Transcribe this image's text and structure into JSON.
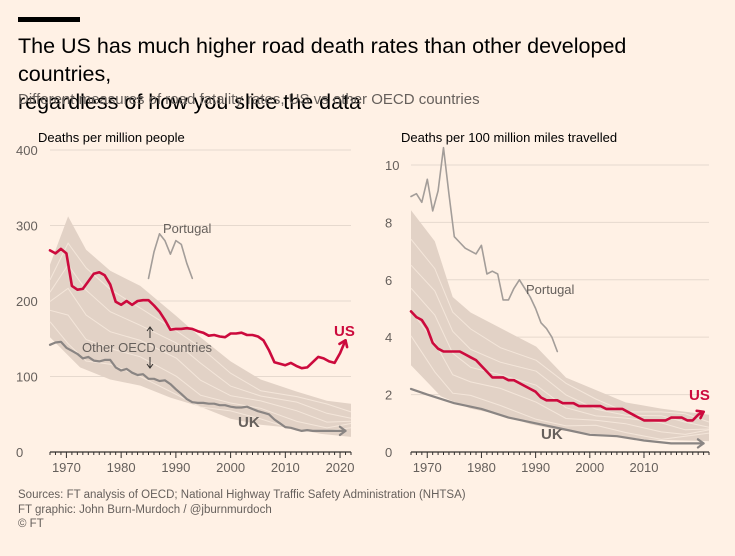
{
  "header": {
    "title_line1": "The US has much higher road death rates than other developed countries,",
    "title_line2": "regardless of how you slice the data",
    "subtitle": "Different measures of road fatality rates, US vs other OECD countries"
  },
  "colors": {
    "background": "#fff1e5",
    "us": "#cc0a3d",
    "uk": "#8a8583",
    "other_oecd_band": "#e2d2c6",
    "other_oecd_lines": "#f4e6da",
    "portugal": "#a39d99",
    "axis": "#33302e"
  },
  "footer": {
    "sources": "Sources: FT analysis of OECD; National Highway Traffic Safety Administration (NHTSA)",
    "graphic": "FT graphic: John Burn-Murdoch / @jburnmurdoch",
    "copyright": "© FT"
  },
  "chart_data": [
    {
      "type": "line",
      "title": "Deaths per million people",
      "xlim": [
        1967,
        2022
      ],
      "ylim": [
        0,
        400
      ],
      "x_ticks": [
        1970,
        1980,
        1990,
        2000,
        2010,
        2020
      ],
      "y_ticks": [
        0,
        100,
        200,
        300,
        400
      ],
      "grid": true,
      "annotations": [
        "Portugal",
        "Other OECD countries",
        "US",
        "UK"
      ],
      "series": [
        {
          "name": "US",
          "x": [
            1967,
            1968,
            1969,
            1970,
            1971,
            1972,
            1973,
            1974,
            1975,
            1976,
            1977,
            1978,
            1979,
            1980,
            1981,
            1982,
            1983,
            1984,
            1985,
            1986,
            1987,
            1988,
            1989,
            1990,
            1991,
            1992,
            1993,
            1994,
            1995,
            1996,
            1997,
            1998,
            1999,
            2000,
            2001,
            2002,
            2003,
            2004,
            2005,
            2006,
            2007,
            2008,
            2009,
            2010,
            2011,
            2012,
            2013,
            2014,
            2015,
            2016,
            2017,
            2018,
            2019,
            2020,
            2021
          ],
          "y": [
            267,
            263,
            269,
            263,
            220,
            215,
            216,
            226,
            236,
            238,
            234,
            222,
            199,
            195,
            200,
            195,
            200,
            201,
            201,
            194,
            186,
            175,
            162,
            163,
            163,
            164,
            163,
            160,
            158,
            154,
            155,
            153,
            152,
            157,
            157,
            158,
            155,
            155,
            153,
            148,
            135,
            119,
            117,
            115,
            118,
            114,
            111,
            112,
            119,
            126,
            124,
            120,
            118,
            131,
            148
          ]
        },
        {
          "name": "UK",
          "x": [
            1967,
            1968,
            1969,
            1970,
            1971,
            1972,
            1973,
            1974,
            1975,
            1976,
            1977,
            1978,
            1979,
            1980,
            1981,
            1982,
            1983,
            1984,
            1985,
            1986,
            1987,
            1988,
            1989,
            1990,
            1991,
            1992,
            1993,
            1994,
            1995,
            1996,
            1997,
            1998,
            1999,
            2000,
            2001,
            2002,
            2003,
            2004,
            2005,
            2006,
            2007,
            2008,
            2009,
            2010,
            2011,
            2012,
            2013,
            2014,
            2015,
            2016,
            2017,
            2018,
            2019,
            2020,
            2021
          ],
          "y": [
            142,
            145,
            146,
            138,
            134,
            130,
            124,
            126,
            121,
            120,
            122,
            122,
            112,
            108,
            110,
            105,
            102,
            103,
            97,
            97,
            94,
            95,
            90,
            83,
            77,
            70,
            66,
            65,
            65,
            64,
            64,
            62,
            62,
            60,
            59,
            59,
            60,
            57,
            54,
            52,
            50,
            43,
            38,
            33,
            32,
            30,
            28,
            29,
            28,
            28,
            28,
            28,
            28,
            28,
            28
          ]
        },
        {
          "name": "Portugal",
          "x": [
            1985,
            1986,
            1987,
            1988,
            1989,
            1990,
            1991,
            1992,
            1993
          ],
          "y": [
            230,
            265,
            289,
            280,
            262,
            280,
            275,
            250,
            230
          ]
        }
      ]
    },
    {
      "type": "line",
      "title": "Deaths per 100 million miles travelled",
      "xlim": [
        1967,
        2022
      ],
      "ylim": [
        0,
        10.8
      ],
      "x_ticks": [
        1970,
        1980,
        1990,
        2000,
        2010
      ],
      "y_ticks": [
        0,
        2,
        4,
        6,
        8,
        10
      ],
      "grid": true,
      "annotations": [
        "Portugal",
        "US",
        "UK"
      ],
      "series": [
        {
          "name": "US",
          "x": [
            1967,
            1968,
            1969,
            1970,
            1971,
            1972,
            1973,
            1974,
            1975,
            1976,
            1977,
            1978,
            1979,
            1980,
            1981,
            1982,
            1983,
            1984,
            1985,
            1986,
            1987,
            1988,
            1989,
            1990,
            1991,
            1992,
            1993,
            1994,
            1995,
            1996,
            1997,
            1998,
            1999,
            2000,
            2001,
            2002,
            2003,
            2004,
            2005,
            2006,
            2007,
            2008,
            2009,
            2010,
            2011,
            2012,
            2013,
            2014,
            2015,
            2016,
            2017,
            2018,
            2019,
            2020,
            2021
          ],
          "y": [
            4.9,
            4.7,
            4.6,
            4.3,
            3.8,
            3.6,
            3.5,
            3.5,
            3.5,
            3.5,
            3.4,
            3.3,
            3.2,
            3.0,
            2.8,
            2.6,
            2.6,
            2.6,
            2.5,
            2.5,
            2.4,
            2.3,
            2.2,
            2.1,
            1.9,
            1.8,
            1.8,
            1.8,
            1.7,
            1.7,
            1.7,
            1.6,
            1.6,
            1.6,
            1.6,
            1.6,
            1.5,
            1.5,
            1.5,
            1.5,
            1.4,
            1.3,
            1.2,
            1.1,
            1.1,
            1.1,
            1.1,
            1.1,
            1.2,
            1.2,
            1.2,
            1.1,
            1.1,
            1.3,
            1.4
          ]
        },
        {
          "name": "UK",
          "x": [
            1967,
            1970,
            1975,
            1980,
            1985,
            1990,
            1995,
            2000,
            2005,
            2010,
            2015,
            2021
          ],
          "y": [
            2.2,
            2.0,
            1.7,
            1.5,
            1.2,
            1.0,
            0.8,
            0.6,
            0.55,
            0.4,
            0.3,
            0.3
          ]
        },
        {
          "name": "Portugal",
          "x": [
            1967,
            1968,
            1969,
            1970,
            1971,
            1972,
            1973,
            1974,
            1975,
            1976,
            1977,
            1978,
            1979,
            1980,
            1981,
            1982,
            1983,
            1984,
            1985,
            1986,
            1987,
            1988,
            1989,
            1990,
            1991,
            1992,
            1993,
            1994
          ],
          "y": [
            8.9,
            9.0,
            8.7,
            9.5,
            8.4,
            9.1,
            10.6,
            9.0,
            7.5,
            7.3,
            7.1,
            7.0,
            6.9,
            7.2,
            6.2,
            6.3,
            6.2,
            5.3,
            5.3,
            5.7,
            6.0,
            5.7,
            5.4,
            5.0,
            4.5,
            4.3,
            4.0,
            3.5
          ]
        }
      ]
    }
  ]
}
